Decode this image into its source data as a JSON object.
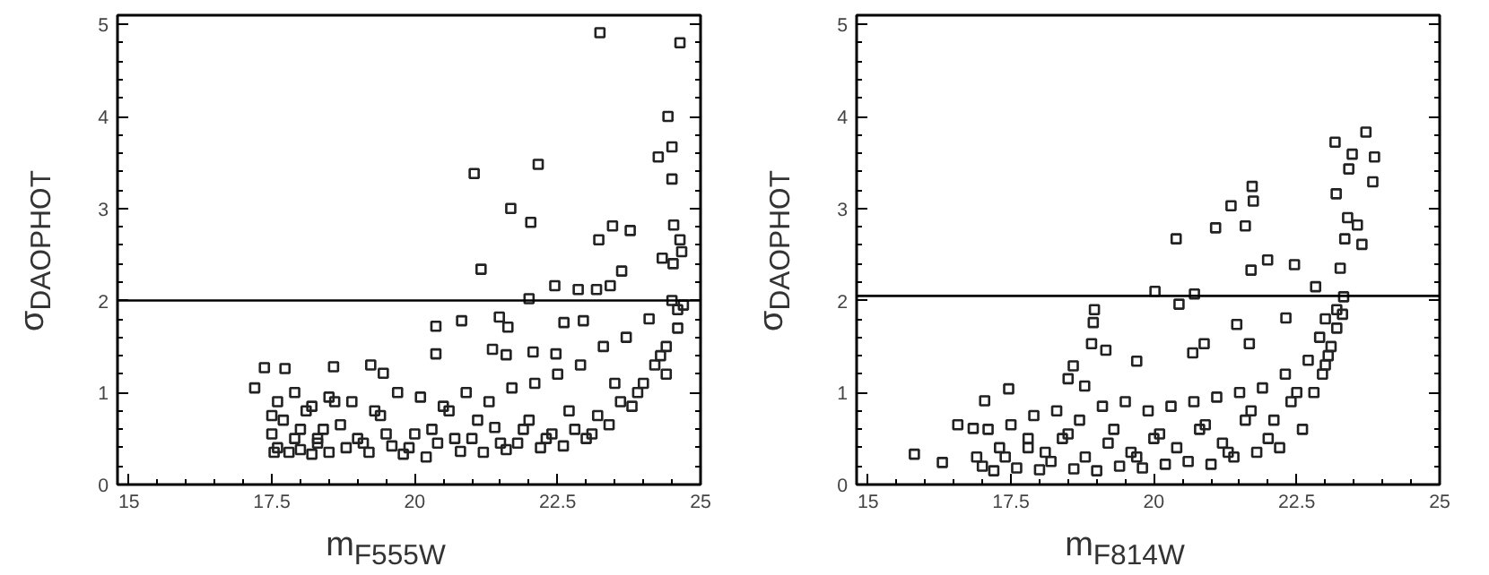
{
  "chart_data": [
    {
      "type": "scatter",
      "xlabel": "m$_{F555W}$",
      "ylabel": "σ$_{DAOPHOT}$",
      "xlim": [
        14.8,
        25
      ],
      "ylim": [
        0,
        5.1
      ],
      "xticks": [
        15,
        17.5,
        20,
        22.5,
        25
      ],
      "yticks": [
        0,
        1,
        2,
        3,
        4,
        5
      ],
      "grid": false,
      "marker": "square",
      "ref_lines": [
        {
          "axis": "y",
          "value": 2,
          "color": "#000000"
        }
      ],
      "series": [
        {
          "color": "#222222",
          "x": [
            23.24,
            24.64,
            24.43,
            24.5,
            24.26,
            24.5,
            22.16,
            21.04,
            21.68,
            22.03,
            23.22,
            23.46,
            23.77,
            24.53,
            24.64,
            24.67,
            24.33,
            24.52,
            21.16,
            23.62,
            22.45,
            22.86,
            23.18,
            23.42,
            22.0,
            20.37,
            20.82,
            21.48,
            21.63,
            22.61,
            22.95,
            21.36,
            21.6,
            20.37,
            22.07,
            22.47,
            17.37,
            17.73,
            18.58,
            19.23,
            19.45,
            17.2,
            17.54,
            17.5,
            17.6,
            17.7,
            17.8,
            17.9,
            18.0,
            18.1,
            18.2,
            18.3,
            18.4,
            18.5,
            18.6,
            18.8,
            19.0,
            19.2,
            19.4,
            19.6,
            19.8,
            20.0,
            20.2,
            20.4,
            20.6,
            20.8,
            21.0,
            21.2,
            21.4,
            21.6,
            21.8,
            22.0,
            22.2,
            22.4,
            22.6,
            22.8,
            23.0,
            23.2,
            23.4,
            23.6,
            23.8,
            24.0,
            24.2,
            24.4,
            24.6,
            17.6,
            17.9,
            18.2,
            18.5,
            18.9,
            19.3,
            19.7,
            20.1,
            20.5,
            20.9,
            21.3,
            21.7,
            22.1,
            22.5,
            22.9,
            23.3,
            23.7,
            24.1,
            24.5,
            24.7,
            17.5,
            18.0,
            18.7,
            19.5,
            20.3,
            21.1,
            21.9,
            22.7,
            23.5,
            24.3,
            24.6,
            18.3,
            19.1,
            19.9,
            20.7,
            21.5,
            22.3,
            23.1,
            23.9,
            24.4
          ],
          "values": [
            4.91,
            4.8,
            4.0,
            3.67,
            3.56,
            3.32,
            3.48,
            3.38,
            3.0,
            2.85,
            2.66,
            2.81,
            2.76,
            2.82,
            2.66,
            2.53,
            2.46,
            2.4,
            2.34,
            2.32,
            2.16,
            2.12,
            2.12,
            2.16,
            2.02,
            1.72,
            1.78,
            1.82,
            1.71,
            1.76,
            1.78,
            1.47,
            1.41,
            1.42,
            1.44,
            1.42,
            1.27,
            1.26,
            1.28,
            1.3,
            1.21,
            1.05,
            0.35,
            0.55,
            0.4,
            0.7,
            0.35,
            0.5,
            0.38,
            0.8,
            0.33,
            0.45,
            0.6,
            0.35,
            0.9,
            0.4,
            0.5,
            0.35,
            0.75,
            0.42,
            0.33,
            0.55,
            0.3,
            0.45,
            0.8,
            0.36,
            0.5,
            0.35,
            0.62,
            0.38,
            0.45,
            0.7,
            0.4,
            0.55,
            0.42,
            0.6,
            0.5,
            0.75,
            0.65,
            0.9,
            0.85,
            1.1,
            1.3,
            1.5,
            1.9,
            0.9,
            1.0,
            0.85,
            0.95,
            0.9,
            0.8,
            1.0,
            0.95,
            0.85,
            1.0,
            0.9,
            1.05,
            1.1,
            1.2,
            1.3,
            1.5,
            1.6,
            1.8,
            2.0,
            1.95,
            0.75,
            0.6,
            0.65,
            0.55,
            0.6,
            0.7,
            0.6,
            0.8,
            1.1,
            1.4,
            1.7,
            0.5,
            0.45,
            0.4,
            0.5,
            0.45,
            0.5,
            0.55,
            1.0,
            1.2
          ]
        }
      ]
    },
    {
      "type": "scatter",
      "xlabel": "m$_{F814W}$",
      "ylabel": "σ$_{DAOPHOT}$",
      "xlim": [
        14.8,
        25
      ],
      "ylim": [
        0,
        5.1
      ],
      "xticks": [
        15,
        17.5,
        20,
        22.5,
        25
      ],
      "yticks": [
        0,
        1,
        2,
        3,
        4,
        5
      ],
      "grid": false,
      "marker": "square",
      "ref_lines": [
        {
          "axis": "y",
          "value": 2.05,
          "color": "#000000"
        }
      ],
      "series": [
        {
          "color": "#222222",
          "x": [
            23.71,
            23.17,
            23.86,
            23.47,
            23.41,
            23.83,
            23.19,
            21.72,
            21.35,
            21.74,
            21.6,
            21.08,
            20.39,
            23.39,
            23.56,
            23.34,
            23.64,
            21.99,
            22.46,
            21.7,
            23.26,
            20.02,
            22.83,
            20.71,
            20.44,
            23.32,
            18.96,
            18.94,
            18.91,
            19.16,
            20.88,
            20.68,
            18.59,
            18.79,
            18.5,
            19.7,
            17.46,
            21.45,
            21.67,
            22.31,
            15.81,
            16.3,
            16.57,
            16.84,
            17.04,
            17.0,
            17.2,
            17.4,
            17.6,
            17.8,
            18.0,
            18.2,
            18.4,
            18.6,
            18.8,
            19.0,
            19.2,
            19.4,
            19.6,
            19.8,
            20.0,
            20.2,
            20.4,
            20.6,
            20.8,
            21.0,
            21.2,
            21.4,
            21.6,
            21.8,
            22.0,
            22.2,
            22.4,
            22.6,
            22.8,
            23.0,
            23.1,
            23.2,
            17.1,
            17.5,
            17.9,
            18.3,
            18.7,
            19.1,
            19.5,
            19.9,
            20.3,
            20.7,
            21.1,
            21.5,
            21.9,
            22.3,
            22.7,
            22.9,
            23.0,
            23.2,
            23.3,
            17.3,
            17.8,
            18.5,
            19.3,
            20.1,
            20.9,
            21.7,
            22.5,
            22.95,
            16.9,
            18.1,
            19.7,
            21.3,
            22.1,
            23.05
          ],
          "values": [
            3.83,
            3.72,
            3.56,
            3.59,
            3.43,
            3.29,
            3.16,
            3.24,
            3.03,
            3.08,
            2.81,
            2.79,
            2.67,
            2.9,
            2.82,
            2.67,
            2.61,
            2.44,
            2.39,
            2.33,
            2.35,
            2.1,
            2.15,
            2.07,
            1.96,
            2.04,
            1.9,
            1.76,
            1.53,
            1.46,
            1.53,
            1.43,
            1.29,
            1.07,
            1.15,
            1.34,
            1.04,
            1.74,
            1.53,
            1.81,
            0.33,
            0.24,
            0.65,
            0.61,
            0.91,
            0.2,
            0.15,
            0.3,
            0.18,
            0.4,
            0.16,
            0.25,
            0.5,
            0.17,
            0.3,
            0.15,
            0.45,
            0.2,
            0.35,
            0.18,
            0.5,
            0.22,
            0.4,
            0.25,
            0.6,
            0.22,
            0.45,
            0.3,
            0.7,
            0.35,
            0.5,
            0.4,
            0.9,
            0.6,
            1.0,
            1.3,
            1.5,
            1.7,
            0.6,
            0.65,
            0.75,
            0.8,
            0.7,
            0.85,
            0.9,
            0.8,
            0.85,
            0.9,
            0.95,
            1.0,
            1.05,
            1.2,
            1.35,
            1.6,
            1.8,
            1.9,
            1.85,
            0.4,
            0.5,
            0.55,
            0.6,
            0.55,
            0.65,
            0.8,
            1.0,
            1.2,
            0.3,
            0.35,
            0.3,
            0.35,
            0.7,
            1.4
          ]
        }
      ]
    }
  ]
}
